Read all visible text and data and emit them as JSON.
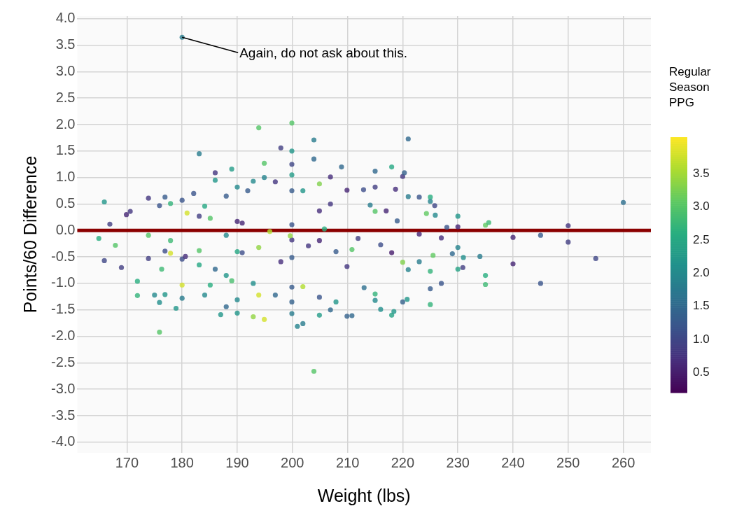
{
  "chart_data": {
    "type": "scatter",
    "xlabel": "Weight (lbs)",
    "ylabel": "Points/60 Difference",
    "clabel": "Regular Season PPG",
    "xlim": [
      161,
      265
    ],
    "xticks": [
      170,
      180,
      190,
      200,
      210,
      220,
      230,
      240,
      250,
      260
    ],
    "ylim": [
      -4.2,
      4.05
    ],
    "yticks": [
      {
        "value": -4,
        "label": "-4.0"
      },
      -3.5,
      {
        "value": -3,
        "label": "-3.0"
      },
      -2.5,
      {
        "value": -2,
        "label": "-2.0"
      },
      -1.5,
      {
        "value": -1,
        "label": "-1.0"
      },
      -0.5,
      {
        "value": 0,
        "label": "0.0"
      },
      0.5,
      {
        "value": 1,
        "label": "1.0"
      },
      1.5,
      {
        "value": 2,
        "label": "2.0"
      },
      2.5,
      {
        "value": 3,
        "label": "3.0"
      },
      3.5,
      {
        "value": 4,
        "label": "4.0"
      }
    ],
    "clim": [
      0.2,
      4.05
    ],
    "cticks": [
      0.5,
      {
        "value": 1,
        "label": "1.0"
      },
      1.5,
      {
        "value": 2,
        "label": "2.0"
      },
      2.5,
      {
        "value": 3,
        "label": "3.0"
      },
      3.5
    ],
    "grid": true,
    "legend": false,
    "marker": "circle",
    "ref_lines": [
      {
        "axis": "y",
        "value": 0,
        "color": "#8b0000"
      }
    ],
    "annotations": [
      {
        "text": "Again, do not ask about this.",
        "x": 180,
        "y": 3.65
      }
    ],
    "x": [
      165.9,
      164.9,
      166.9,
      165.9,
      167.9,
      169.0,
      169.9,
      170.6,
      171.9,
      171.9,
      173.9,
      173.9,
      173.9,
      175.0,
      175.9,
      175.9,
      175.9,
      176.3,
      176.9,
      176.9,
      176.9,
      177.9,
      177.9,
      177.9,
      178.9,
      180,
      180,
      180,
      180,
      180.9,
      180.6,
      182.1,
      183.1,
      183.1,
      183.1,
      183.1,
      184.1,
      184.1,
      185.1,
      185.1,
      186.0,
      186.0,
      186.0,
      187.0,
      188.0,
      188.0,
      188.0,
      188.0,
      189.0,
      189.0,
      190,
      190,
      190,
      190,
      190,
      190.9,
      190.9,
      191.9,
      192.9,
      192.9,
      193.9,
      193.9,
      193.9,
      192.9,
      194.9,
      194.9,
      194.9,
      195.9,
      196.9,
      196.9,
      197.9,
      197.9,
      199.9,
      199.9,
      199.9,
      199.9,
      199.9,
      199.9,
      199.9,
      199.9,
      199.9,
      199.9,
      199.9,
      199.6,
      200.9,
      201.9,
      201.9,
      201.9,
      203.9,
      203.9,
      203.9,
      204.9,
      204.9,
      204.9,
      204.9,
      206.9,
      206.9,
      207.9,
      208.9,
      209.9,
      209.9,
      210.8,
      209.9,
      210.8,
      204.9,
      202.9,
      206.9,
      205.8,
      207.9,
      221.0,
      215.0,
      218.0,
      220.0,
      220.3,
      212.9,
      215.0,
      218.7,
      221.0,
      223.0,
      225.0,
      225.0,
      225.8,
      224.3,
      225.9,
      230.0,
      230.0,
      228.0,
      235.0,
      235.6,
      240.0,
      245.0,
      250.0,
      250.0,
      255.0,
      260.0,
      240.0,
      245.0,
      235.0,
      235.0,
      234.0,
      231.0,
      230.9,
      230.0,
      230.0,
      229.0,
      227.0,
      227.0,
      225.0,
      225.0,
      225.0,
      225.5,
      223.0,
      220.0,
      220.8,
      218.0,
      218.4,
      216.0,
      215.0,
      215.0,
      213.0,
      220.0,
      218.0,
      217.0,
      215.0,
      219.0,
      223.0,
      214.1,
      211.9,
      216.0,
      221.0,
      180
    ],
    "values": [
      0.54,
      -0.15,
      0.12,
      -0.57,
      -0.28,
      -0.7,
      0.3,
      0.36,
      -0.96,
      -1.23,
      0.61,
      -0.09,
      -0.53,
      -1.22,
      0.47,
      -1.36,
      -1.92,
      -0.73,
      0.63,
      -0.39,
      -1.21,
      0.51,
      -0.43,
      -0.19,
      -1.47,
      0.57,
      -0.54,
      -1.28,
      -1.03,
      0.33,
      -0.49,
      0.7,
      1.45,
      0.27,
      -0.38,
      -0.65,
      0.46,
      -1.22,
      0.23,
      -1.03,
      1.09,
      0.95,
      -0.73,
      -1.59,
      0.65,
      -0.09,
      -0.85,
      -1.44,
      1.16,
      -0.95,
      0.82,
      0.17,
      -0.4,
      -1.31,
      -1.56,
      0.14,
      -0.42,
      0.75,
      0.93,
      -1.0,
      1.94,
      -0.32,
      -1.22,
      -1.63,
      1.27,
      1.0,
      -1.68,
      -0.02,
      0.92,
      -1.22,
      1.56,
      -0.59,
      2.03,
      1.5,
      1.25,
      1.05,
      0.75,
      0.11,
      -0.18,
      -0.51,
      -1.07,
      -1.35,
      -1.57,
      -0.1,
      -1.81,
      -1.76,
      -1.06,
      0.75,
      1.71,
      1.35,
      -2.66,
      0.88,
      0.37,
      -1.6,
      -1.26,
      1.01,
      -1.5,
      -1.35,
      1.2,
      0.76,
      -1.62,
      -1.61,
      -0.68,
      -0.36,
      -0.19,
      -0.29,
      0.5,
      0.03,
      -0.4,
      1.73,
      1.12,
      1.2,
      1.02,
      1.09,
      0.77,
      0.82,
      0.78,
      0.64,
      0.63,
      0.63,
      0.55,
      0.47,
      0.32,
      0.29,
      0.27,
      0.07,
      0.06,
      0.1,
      0.15,
      -0.13,
      -0.09,
      0.09,
      -0.22,
      -0.53,
      0.53,
      -0.63,
      -1.0,
      -0.85,
      -1.02,
      -0.49,
      -0.51,
      -0.7,
      -0.73,
      -0.32,
      -0.44,
      -0.14,
      -1.0,
      -1.4,
      -1.1,
      -0.77,
      -0.47,
      -0.59,
      -1.35,
      -1.3,
      -1.6,
      -1.53,
      -1.49,
      -1.32,
      -1.2,
      -1.08,
      -0.6,
      -0.42,
      0.37,
      0.36,
      0.18,
      -0.07,
      0.48,
      -0.15,
      -0.27,
      -0.74,
      3.65
    ],
    "cvalues": [
      2.2,
      2.6,
      0.9,
      1.0,
      3.0,
      0.9,
      0.6,
      0.8,
      2.6,
      2.7,
      0.8,
      3.0,
      0.9,
      2.0,
      1.2,
      2.1,
      3.0,
      2.8,
      1.3,
      1.1,
      2.2,
      2.7,
      3.8,
      2.8,
      2.2,
      1.2,
      1.1,
      1.8,
      3.8,
      3.8,
      0.7,
      1.2,
      1.8,
      0.9,
      3.0,
      2.5,
      2.5,
      2.0,
      3.0,
      2.6,
      0.8,
      2.2,
      1.5,
      2.2,
      1.3,
      2.0,
      2.2,
      1.5,
      2.3,
      2.9,
      2.0,
      0.6,
      2.5,
      2.0,
      2.2,
      0.6,
      1.1,
      1.3,
      2.0,
      2.1,
      3.0,
      3.4,
      3.8,
      3.4,
      3.0,
      1.9,
      3.8,
      3.6,
      0.8,
      1.5,
      0.9,
      0.7,
      3.0,
      2.2,
      1.0,
      2.3,
      1.3,
      1.2,
      0.8,
      1.3,
      1.3,
      1.4,
      1.8,
      3.4,
      1.9,
      1.8,
      3.6,
      2.2,
      1.8,
      1.5,
      3.0,
      3.3,
      0.7,
      2.3,
      1.2,
      0.7,
      1.5,
      2.2,
      1.5,
      0.6,
      1.4,
      1.5,
      0.8,
      3.0,
      0.6,
      0.8,
      0.8,
      2.6,
      1.3,
      1.5,
      1.5,
      2.5,
      0.8,
      1.4,
      1.1,
      0.9,
      0.7,
      1.8,
      1.2,
      2.6,
      1.9,
      1.0,
      3.1,
      2.0,
      2.2,
      0.6,
      1.2,
      3.1,
      2.8,
      0.6,
      1.3,
      0.8,
      0.9,
      1.0,
      1.6,
      0.6,
      1.2,
      2.6,
      2.8,
      1.8,
      2.1,
      0.9,
      2.4,
      1.9,
      1.5,
      0.7,
      1.2,
      2.7,
      1.3,
      2.7,
      3.1,
      1.8,
      1.4,
      2.2,
      2.4,
      2.2,
      2.1,
      2.0,
      2.7,
      1.6,
      3.3,
      0.5,
      0.6,
      3.0,
      1.3,
      0.6,
      1.8,
      0.9,
      1.1,
      1.9,
      1.8
    ]
  }
}
